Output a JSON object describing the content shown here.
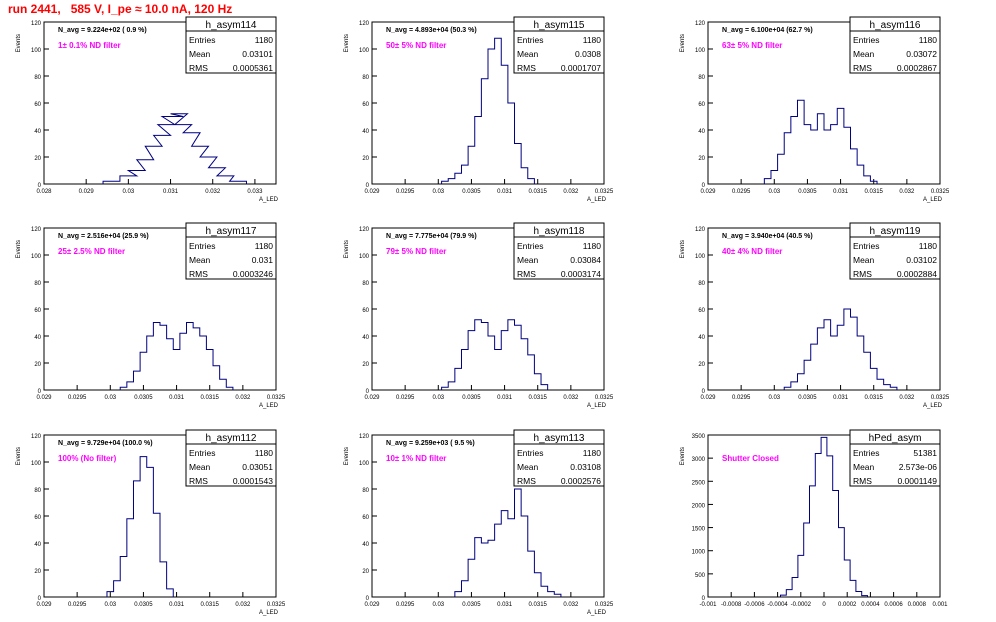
{
  "run_title": "run 2441,   585 V, I_pe ≈ 10.0 nA, 120 Hz",
  "colors": {
    "hist": "#000080",
    "annotation": "#ff00ff",
    "title": "#ff0000",
    "frame": "#000000",
    "grid": "#c8c8c8"
  },
  "stat_labels": {
    "entries": "Entries",
    "mean": "Mean",
    "rms": "RMS"
  },
  "chart_data": [
    {
      "type": "bar",
      "name": "h_asym114",
      "navg": "N_avg = 9.224e+02 ( 0.9 %)",
      "filter": "1± 0.1% ND filter",
      "entries": "1180",
      "mean": "0.03101",
      "rms": "0.0005361",
      "ylabel": "Events",
      "xlabel": "A_LED",
      "xlim": [
        0.028,
        0.0335
      ],
      "ylim": [
        0,
        120
      ],
      "yticks": [
        "0",
        "20",
        "40",
        "60",
        "80",
        "100",
        "120"
      ],
      "xticks": [
        [
          "0.028",
          0.028
        ],
        [
          "0.029",
          0.029
        ],
        [
          "0.03",
          0.03
        ],
        [
          "0.031",
          0.031
        ],
        [
          "0.032",
          0.032
        ],
        [
          "0.033",
          0.033
        ]
      ],
      "x": [
        0.0296,
        0.03,
        0.0302,
        0.0304,
        0.0306,
        0.0308,
        0.0309,
        0.031,
        0.0311,
        0.0312,
        0.0313,
        0.0315,
        0.0317,
        0.0319,
        0.0321,
        0.0323,
        0.0326
      ],
      "y": [
        2,
        6,
        10,
        18,
        28,
        36,
        44,
        50,
        50,
        52,
        44,
        38,
        28,
        20,
        12,
        6,
        2
      ]
    },
    {
      "type": "bar",
      "name": "h_asym115",
      "navg": "N_avg = 4.893e+04 (50.3 %)",
      "filter": "50± 5% ND filter",
      "entries": "1180",
      "mean": "0.0308",
      "rms": "0.0001707",
      "ylabel": "Events",
      "xlabel": "A_LED",
      "xlim": [
        0.029,
        0.0325
      ],
      "ylim": [
        0,
        120
      ],
      "yticks": [
        "0",
        "20",
        "40",
        "60",
        "80",
        "100",
        "120"
      ],
      "xticks": [
        [
          "0.029",
          0.029
        ],
        [
          "0.0295",
          0.0295
        ],
        [
          "0.03",
          0.03
        ],
        [
          "0.0305",
          0.0305
        ],
        [
          "0.031",
          0.031
        ],
        [
          "0.0315",
          0.0315
        ],
        [
          "0.032",
          0.032
        ],
        [
          "0.0325",
          0.0325
        ]
      ],
      "x": [
        0.0301,
        0.0302,
        0.0303,
        0.0304,
        0.0305,
        0.0306,
        0.0307,
        0.0308,
        0.0309,
        0.031,
        0.0311,
        0.0312,
        0.0313,
        0.0314
      ],
      "y": [
        2,
        4,
        8,
        14,
        28,
        50,
        78,
        100,
        108,
        88,
        60,
        30,
        12,
        4
      ]
    },
    {
      "type": "bar",
      "name": "h_asym116",
      "navg": "N_avg = 6.100e+04 (62.7 %)",
      "filter": "63± 5% ND filter",
      "entries": "1180",
      "mean": "0.03072",
      "rms": "0.0002867",
      "ylabel": "Events",
      "xlabel": "A_LED",
      "xlim": [
        0.029,
        0.0325
      ],
      "ylim": [
        0,
        120
      ],
      "yticks": [
        "0",
        "20",
        "40",
        "60",
        "80",
        "100",
        "120"
      ],
      "xticks": [
        [
          "0.029",
          0.029
        ],
        [
          "0.0295",
          0.0295
        ],
        [
          "0.03",
          0.03
        ],
        [
          "0.0305",
          0.0305
        ],
        [
          "0.031",
          0.031
        ],
        [
          "0.0315",
          0.0315
        ],
        [
          "0.032",
          0.032
        ],
        [
          "0.0325",
          0.0325
        ]
      ],
      "x": [
        0.0299,
        0.03,
        0.0301,
        0.0302,
        0.0303,
        0.0304,
        0.0305,
        0.0306,
        0.0307,
        0.0308,
        0.0309,
        0.031,
        0.0311,
        0.0312,
        0.0313,
        0.0314,
        0.0315
      ],
      "y": [
        4,
        10,
        22,
        38,
        50,
        62,
        44,
        40,
        52,
        40,
        44,
        56,
        42,
        26,
        14,
        6,
        2
      ]
    },
    {
      "type": "bar",
      "name": "h_asym117",
      "navg": "N_avg = 2.516e+04 (25.9 %)",
      "filter": "25± 2.5% ND filter",
      "entries": "1180",
      "mean": "0.031",
      "rms": "0.0003246",
      "ylabel": "Events",
      "xlabel": "A_LED",
      "xlim": [
        0.029,
        0.0325
      ],
      "ylim": [
        0,
        120
      ],
      "yticks": [
        "0",
        "20",
        "40",
        "60",
        "80",
        "100",
        "120"
      ],
      "xticks": [
        [
          "0.029",
          0.029
        ],
        [
          "0.0295",
          0.0295
        ],
        [
          "0.03",
          0.03
        ],
        [
          "0.0305",
          0.0305
        ],
        [
          "0.031",
          0.031
        ],
        [
          "0.0315",
          0.0315
        ],
        [
          "0.032",
          0.032
        ],
        [
          "0.0325",
          0.0325
        ]
      ],
      "x": [
        0.0302,
        0.0303,
        0.0304,
        0.0305,
        0.0306,
        0.0307,
        0.0308,
        0.0309,
        0.031,
        0.0311,
        0.0312,
        0.0313,
        0.0314,
        0.0315,
        0.0316,
        0.0317,
        0.0318
      ],
      "y": [
        2,
        6,
        14,
        28,
        40,
        50,
        48,
        38,
        30,
        42,
        50,
        46,
        40,
        30,
        18,
        8,
        2
      ]
    },
    {
      "type": "bar",
      "name": "h_asym118",
      "navg": "N_avg = 7.775e+04 (79.9 %)",
      "filter": "79± 5% ND filter",
      "entries": "1180",
      "mean": "0.03084",
      "rms": "0.0003174",
      "ylabel": "Events",
      "xlabel": "A_LED",
      "xlim": [
        0.029,
        0.0325
      ],
      "ylim": [
        0,
        120
      ],
      "yticks": [
        "0",
        "20",
        "40",
        "60",
        "80",
        "100",
        "120"
      ],
      "xticks": [
        [
          "0.029",
          0.029
        ],
        [
          "0.0295",
          0.0295
        ],
        [
          "0.03",
          0.03
        ],
        [
          "0.0305",
          0.0305
        ],
        [
          "0.031",
          0.031
        ],
        [
          "0.0315",
          0.0315
        ],
        [
          "0.032",
          0.032
        ],
        [
          "0.0325",
          0.0325
        ]
      ],
      "x": [
        0.0301,
        0.0302,
        0.0303,
        0.0304,
        0.0305,
        0.0306,
        0.0307,
        0.0308,
        0.0309,
        0.031,
        0.0311,
        0.0312,
        0.0313,
        0.0314,
        0.0315,
        0.0316
      ],
      "y": [
        2,
        6,
        16,
        30,
        44,
        52,
        50,
        40,
        30,
        44,
        52,
        48,
        38,
        26,
        12,
        4
      ]
    },
    {
      "type": "bar",
      "name": "h_asym119",
      "navg": "N_avg = 3.940e+04 (40.5 %)",
      "filter": "40± 4% ND filter",
      "entries": "1180",
      "mean": "0.03102",
      "rms": "0.0002884",
      "ylabel": "Events",
      "xlabel": "A_LED",
      "xlim": [
        0.029,
        0.0325
      ],
      "ylim": [
        0,
        120
      ],
      "yticks": [
        "0",
        "20",
        "40",
        "60",
        "80",
        "100",
        "120"
      ],
      "xticks": [
        [
          "0.029",
          0.029
        ],
        [
          "0.0295",
          0.0295
        ],
        [
          "0.03",
          0.03
        ],
        [
          "0.0305",
          0.0305
        ],
        [
          "0.031",
          0.031
        ],
        [
          "0.0315",
          0.0315
        ],
        [
          "0.032",
          0.032
        ],
        [
          "0.0325",
          0.0325
        ]
      ],
      "x": [
        0.0302,
        0.0303,
        0.0304,
        0.0305,
        0.0306,
        0.0307,
        0.0308,
        0.0309,
        0.031,
        0.0311,
        0.0312,
        0.0313,
        0.0314,
        0.0315,
        0.0316,
        0.0317,
        0.0318
      ],
      "y": [
        2,
        6,
        12,
        22,
        34,
        46,
        52,
        40,
        48,
        60,
        54,
        40,
        28,
        16,
        8,
        4,
        2
      ]
    },
    {
      "type": "bar",
      "name": "h_asym112",
      "navg": "N_avg = 9.729e+04 (100.0 %)",
      "filter": "100% (No filter)",
      "entries": "1180",
      "mean": "0.03051",
      "rms": "0.0001543",
      "ylabel": "Events",
      "xlabel": "A_LED",
      "xlim": [
        0.029,
        0.0325
      ],
      "ylim": [
        0,
        120
      ],
      "yticks": [
        "0",
        "20",
        "40",
        "60",
        "80",
        "100",
        "120"
      ],
      "xticks": [
        [
          "0.029",
          0.029
        ],
        [
          "0.0295",
          0.0295
        ],
        [
          "0.03",
          0.03
        ],
        [
          "0.0305",
          0.0305
        ],
        [
          "0.031",
          0.031
        ],
        [
          "0.0315",
          0.0315
        ],
        [
          "0.032",
          0.032
        ],
        [
          "0.0325",
          0.0325
        ]
      ],
      "x": [
        0.03,
        0.0301,
        0.0302,
        0.0303,
        0.0304,
        0.0305,
        0.0306,
        0.0307,
        0.0308,
        0.0309
      ],
      "y": [
        4,
        12,
        30,
        58,
        86,
        104,
        96,
        62,
        26,
        6
      ]
    },
    {
      "type": "bar",
      "name": "h_asym113",
      "navg": "N_avg = 9.259e+03 ( 9.5 %)",
      "filter": "10± 1% ND filter",
      "entries": "1180",
      "mean": "0.03108",
      "rms": "0.0002576",
      "ylabel": "Events",
      "xlabel": "A_LED",
      "xlim": [
        0.029,
        0.0325
      ],
      "ylim": [
        0,
        120
      ],
      "yticks": [
        "0",
        "20",
        "40",
        "60",
        "80",
        "100",
        "120"
      ],
      "xticks": [
        [
          "0.029",
          0.029
        ],
        [
          "0.0295",
          0.0295
        ],
        [
          "0.03",
          0.03
        ],
        [
          "0.0305",
          0.0305
        ],
        [
          "0.031",
          0.031
        ],
        [
          "0.0315",
          0.0315
        ],
        [
          "0.032",
          0.032
        ],
        [
          "0.0325",
          0.0325
        ]
      ],
      "x": [
        0.0303,
        0.0304,
        0.0305,
        0.0306,
        0.0307,
        0.0308,
        0.0309,
        0.031,
        0.0311,
        0.0312,
        0.0313,
        0.0314,
        0.0315,
        0.0316,
        0.0317,
        0.0318
      ],
      "y": [
        4,
        12,
        28,
        44,
        40,
        42,
        54,
        64,
        58,
        80,
        60,
        34,
        18,
        8,
        4,
        2
      ]
    },
    {
      "type": "bar",
      "name": "hPed_asym",
      "navg": "",
      "filter": "Shutter Closed",
      "entries": "51381",
      "mean": "2.573e-06",
      "rms": "0.0001149",
      "ylabel": "Events",
      "xlabel": "",
      "xlim": [
        -0.001,
        0.001
      ],
      "ylim": [
        0,
        3500
      ],
      "yticks": [
        "0",
        "500",
        "1000",
        "1500",
        "2000",
        "2500",
        "3000",
        "3500"
      ],
      "xticks": [
        [
          "-0.001",
          -0.001
        ],
        [
          "-0.0008",
          -0.0008
        ],
        [
          "-0.0006",
          -0.0006
        ],
        [
          "-0.0004",
          -0.0004
        ],
        [
          "-0.0002",
          -0.0002
        ],
        [
          "0",
          0
        ],
        [
          "0.0002",
          0.0002
        ],
        [
          "0.0004",
          0.0004
        ],
        [
          "0.0006",
          0.0006
        ],
        [
          "0.0008",
          0.0008
        ],
        [
          "0.001",
          0.001
        ]
      ],
      "x": [
        -0.00035,
        -0.0003,
        -0.00025,
        -0.0002,
        -0.00015,
        -0.0001,
        -5e-05,
        0,
        5e-05,
        0.0001,
        0.00015,
        0.0002,
        0.00025,
        0.0003,
        0.00035
      ],
      "y": [
        40,
        160,
        420,
        900,
        1600,
        2400,
        3100,
        3450,
        3050,
        2300,
        1500,
        800,
        360,
        120,
        30
      ]
    }
  ]
}
